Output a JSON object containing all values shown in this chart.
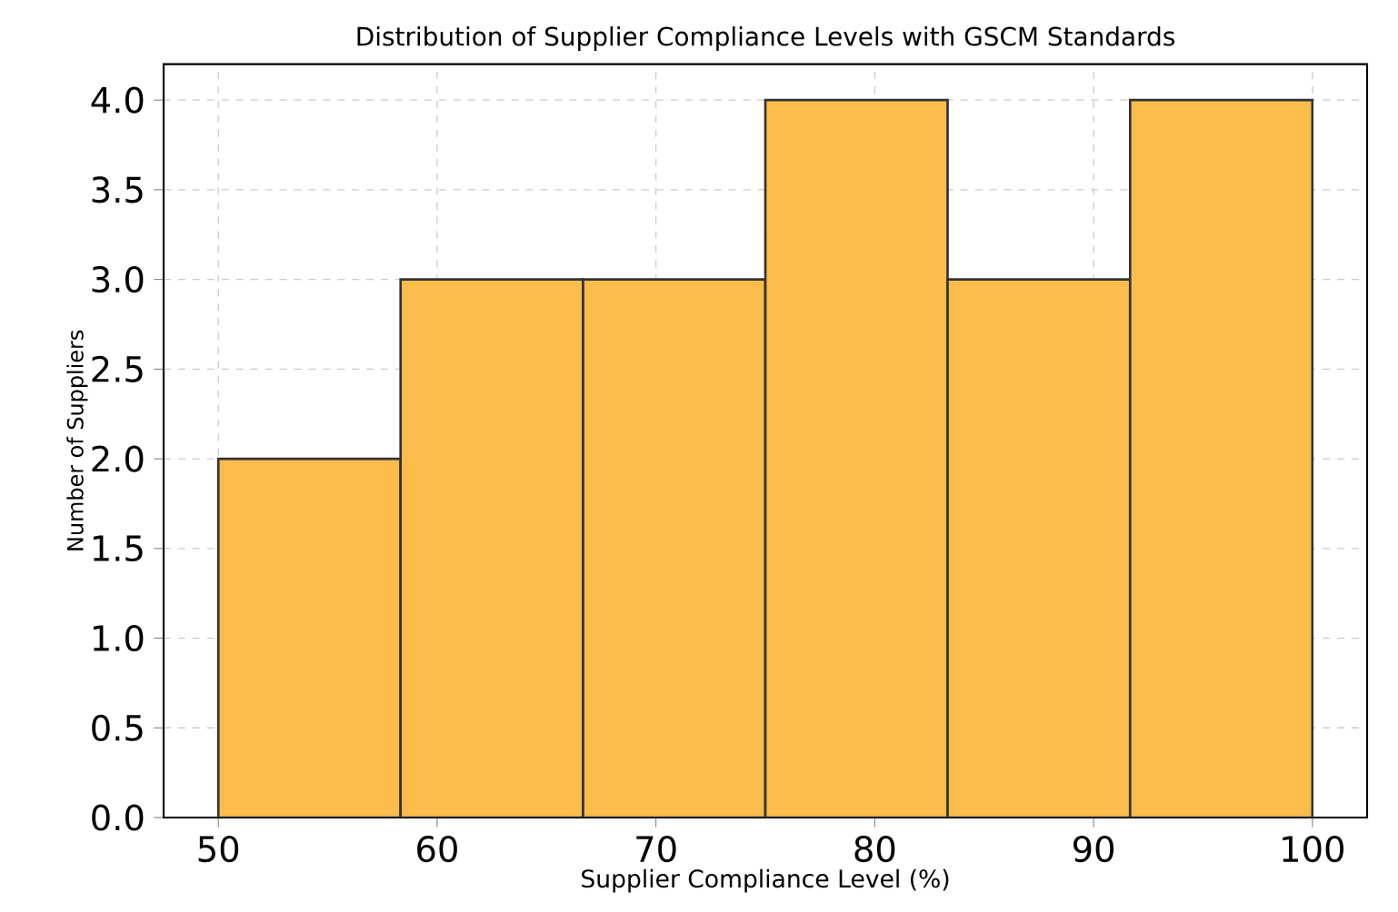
{
  "chart_data": {
    "type": "histogram",
    "title": "Distribution of Supplier Compliance Levels with GSCM Standards",
    "xlabel": "Supplier Compliance Level (%)",
    "ylabel": "Number of Suppliers",
    "bins": [
      50,
      58.33,
      66.67,
      75,
      83.33,
      91.67,
      100
    ],
    "values": [
      2,
      3,
      3,
      4,
      3,
      4
    ],
    "color": "#fbbc4c",
    "xlim": [
      47.5,
      102.5
    ],
    "ylim": [
      0,
      4.2
    ],
    "xticks": [
      50,
      60,
      70,
      80,
      90,
      100
    ],
    "yticks": [
      {
        "value": 0,
        "label": "0.0"
      },
      {
        "value": 0.5,
        "label": "0.5"
      },
      {
        "value": 1,
        "label": "1.0"
      },
      {
        "value": 1.5,
        "label": "1.5"
      },
      {
        "value": 2,
        "label": "2.0"
      },
      {
        "value": 2.5,
        "label": "2.5"
      },
      {
        "value": 3,
        "label": "3.0"
      },
      {
        "value": 3.5,
        "label": "3.5"
      },
      {
        "value": 4,
        "label": "4.0"
      }
    ],
    "grid": true
  }
}
